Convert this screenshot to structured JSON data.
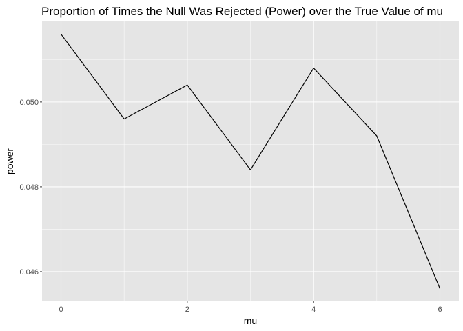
{
  "chart_data": {
    "type": "line",
    "title": "Proportion of Times the Null Was Rejected (Power) over the True Value of mu",
    "xlabel": "mu",
    "ylabel": "power",
    "x": [
      0,
      1,
      2,
      3,
      4,
      5,
      6
    ],
    "series": [
      {
        "values": [
          0.0516,
          0.0496,
          0.0504,
          0.0484,
          0.0508,
          0.0492,
          0.0456
        ]
      }
    ],
    "xlim": [
      -0.3,
      6.3
    ],
    "ylim": [
      0.0453,
      0.0519
    ],
    "xticks": [
      0,
      2,
      4,
      6
    ],
    "xtick_labels": [
      "0",
      "2",
      "4",
      "6"
    ],
    "yticks": [
      0.046,
      0.048,
      0.05
    ],
    "ytick_labels": [
      "0.046",
      "0.048",
      "0.050"
    ],
    "grid": true,
    "legend": "none",
    "colors": {
      "panel_background": "#e5e5e5",
      "grid_major": "#ffffff",
      "line": "#000000",
      "tick_label": "#4d4d4d"
    }
  }
}
